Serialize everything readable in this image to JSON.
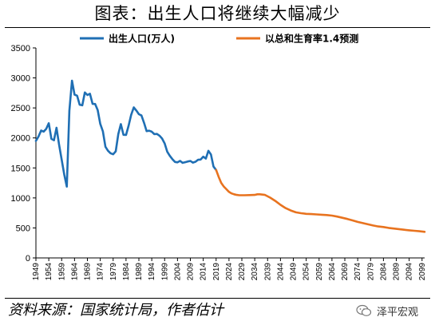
{
  "header": {
    "title": "图表：出生人口将继续大幅减少"
  },
  "footer": {
    "source": "资料来源：国家统计局，作者估计",
    "brand": "泽平宏观"
  },
  "chart_data": {
    "type": "line",
    "title": "图表：出生人口将继续大幅减少",
    "xlabel": "",
    "ylabel": "",
    "ylim": [
      0,
      3500
    ],
    "yticks": [
      0,
      500,
      1000,
      1500,
      2000,
      2500,
      3000,
      3500
    ],
    "xlim": [
      1949,
      2100
    ],
    "xticks": [
      1949,
      1954,
      1959,
      1964,
      1969,
      1974,
      1979,
      1984,
      1989,
      1994,
      1999,
      2004,
      2009,
      2014,
      2019,
      2024,
      2029,
      2034,
      2039,
      2044,
      2049,
      2054,
      2059,
      2064,
      2069,
      2074,
      2079,
      2084,
      2089,
      2094,
      2099
    ],
    "grid": false,
    "legend_position": "top",
    "series": [
      {
        "name": "出生人口(万人)",
        "color": "#1f6fb4",
        "x": [
          1949,
          1950,
          1951,
          1952,
          1953,
          1954,
          1955,
          1956,
          1957,
          1958,
          1959,
          1960,
          1961,
          1962,
          1963,
          1964,
          1965,
          1966,
          1967,
          1968,
          1969,
          1970,
          1971,
          1972,
          1973,
          1974,
          1975,
          1976,
          1977,
          1978,
          1979,
          1980,
          1981,
          1982,
          1983,
          1984,
          1985,
          1986,
          1987,
          1988,
          1989,
          1990,
          1991,
          1992,
          1993,
          1994,
          1995,
          1996,
          1997,
          1998,
          1999,
          2000,
          2001,
          2002,
          2003,
          2004,
          2005,
          2006,
          2007,
          2008,
          2009,
          2010,
          2011,
          2012,
          2013,
          2014,
          2015,
          2016,
          2017,
          2018,
          2019
        ],
        "values": [
          1950,
          2023,
          2122,
          2105,
          2151,
          2245,
          1984,
          1961,
          2169,
          1889,
          1635,
          1389,
          1188,
          2451,
          2954,
          2721,
          2704,
          2554,
          2543,
          2757,
          2715,
          2736,
          2567,
          2566,
          2463,
          2235,
          2109,
          1853,
          1786,
          1745,
          1727,
          1776,
          2064,
          2230,
          2052,
          2050,
          2202,
          2384,
          2508,
          2457,
          2396,
          2374,
          2250,
          2113,
          2120,
          2104,
          2063,
          2067,
          2038,
          1991,
          1909,
          1771,
          1702,
          1647,
          1599,
          1593,
          1617,
          1585,
          1595,
          1608,
          1615,
          1588,
          1604,
          1635,
          1640,
          1687,
          1655,
          1786,
          1723,
          1523,
          1465
        ]
      },
      {
        "name": "以总和生育率1.4预测",
        "color": "#e8731f",
        "x": [
          2019,
          2020,
          2021,
          2022,
          2023,
          2024,
          2025,
          2026,
          2027,
          2028,
          2030,
          2032,
          2034,
          2035,
          2036,
          2038,
          2040,
          2042,
          2044,
          2046,
          2048,
          2050,
          2052,
          2054,
          2056,
          2058,
          2060,
          2062,
          2064,
          2066,
          2068,
          2070,
          2072,
          2074,
          2076,
          2078,
          2080,
          2082,
          2084,
          2086,
          2088,
          2090,
          2092,
          2094,
          2096,
          2098,
          2100
        ],
        "values": [
          1465,
          1350,
          1250,
          1190,
          1145,
          1100,
          1075,
          1060,
          1050,
          1045,
          1045,
          1048,
          1050,
          1060,
          1060,
          1050,
          1005,
          950,
          885,
          830,
          790,
          760,
          745,
          735,
          730,
          725,
          720,
          715,
          705,
          690,
          670,
          650,
          625,
          600,
          580,
          560,
          540,
          525,
          515,
          500,
          490,
          480,
          470,
          460,
          452,
          445,
          435
        ]
      }
    ]
  }
}
